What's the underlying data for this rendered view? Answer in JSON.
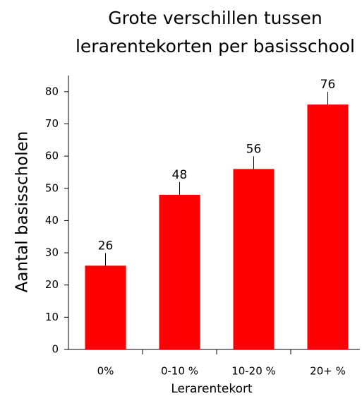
{
  "chart_data": {
    "type": "bar",
    "title": "Grote verschillen tussen lerarentekorten per basisschool",
    "x_label": "Lerarentekort",
    "y_label": "Aantal basisscholen",
    "categories": [
      "0%",
      "0-10 %",
      "10-20 %",
      "20+ %"
    ],
    "values": [
      26,
      48,
      56,
      76
    ],
    "color": "#ff0000",
    "ylim": [
      0,
      85
    ],
    "yticks": [
      0,
      10,
      20,
      30,
      40,
      50,
      60,
      70,
      80
    ]
  }
}
